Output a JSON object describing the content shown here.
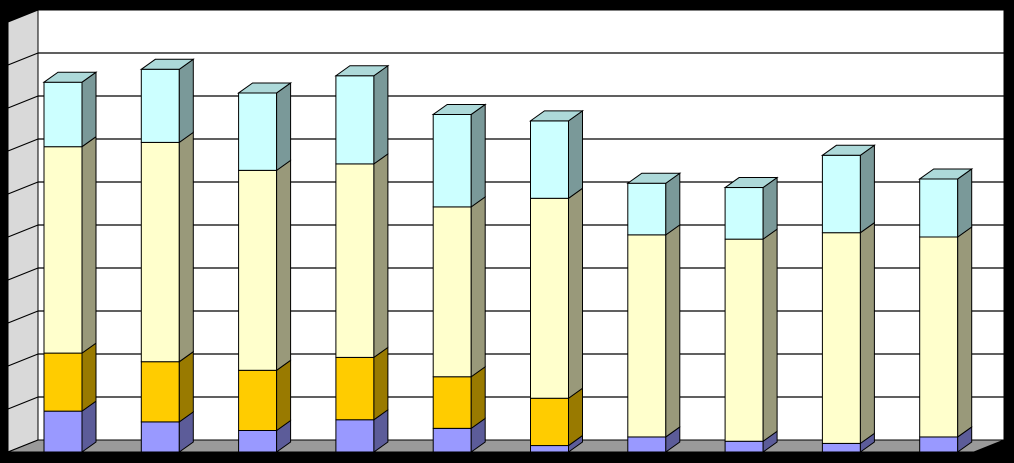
{
  "chart_data": {
    "type": "bar",
    "stacked": true,
    "three_d": true,
    "categories": [
      "",
      "",
      "",
      "",
      "",
      "",
      "",
      "",
      "",
      ""
    ],
    "ylim": [
      0,
      100
    ],
    "grid": true,
    "legend": "none",
    "series": [
      {
        "values": [
          9.5,
          7.0,
          5.0,
          7.5,
          5.5,
          1.5,
          3.5,
          2.5,
          2.0,
          3.5
        ],
        "color": "#9999FF"
      },
      {
        "values": [
          13.5,
          14.0,
          14.0,
          14.5,
          12.0,
          11.0,
          0,
          0,
          0,
          0
        ],
        "color": "#FFCC00"
      },
      {
        "values": [
          48.0,
          51.0,
          46.5,
          45.0,
          39.5,
          46.5,
          47.0,
          47.0,
          49.0,
          46.5
        ],
        "color": "#FFFFCC"
      },
      {
        "values": [
          15.0,
          17.0,
          18.0,
          20.5,
          21.5,
          18.0,
          12.0,
          12.0,
          18.0,
          13.5
        ],
        "color": "#CCFFFF"
      }
    ],
    "colors": {
      "background": "#000000",
      "plot_back": "#FFFFFF",
      "side_wall": "#D9D9D9",
      "floor": "#9A9A9A",
      "gridline": "#000000"
    }
  }
}
